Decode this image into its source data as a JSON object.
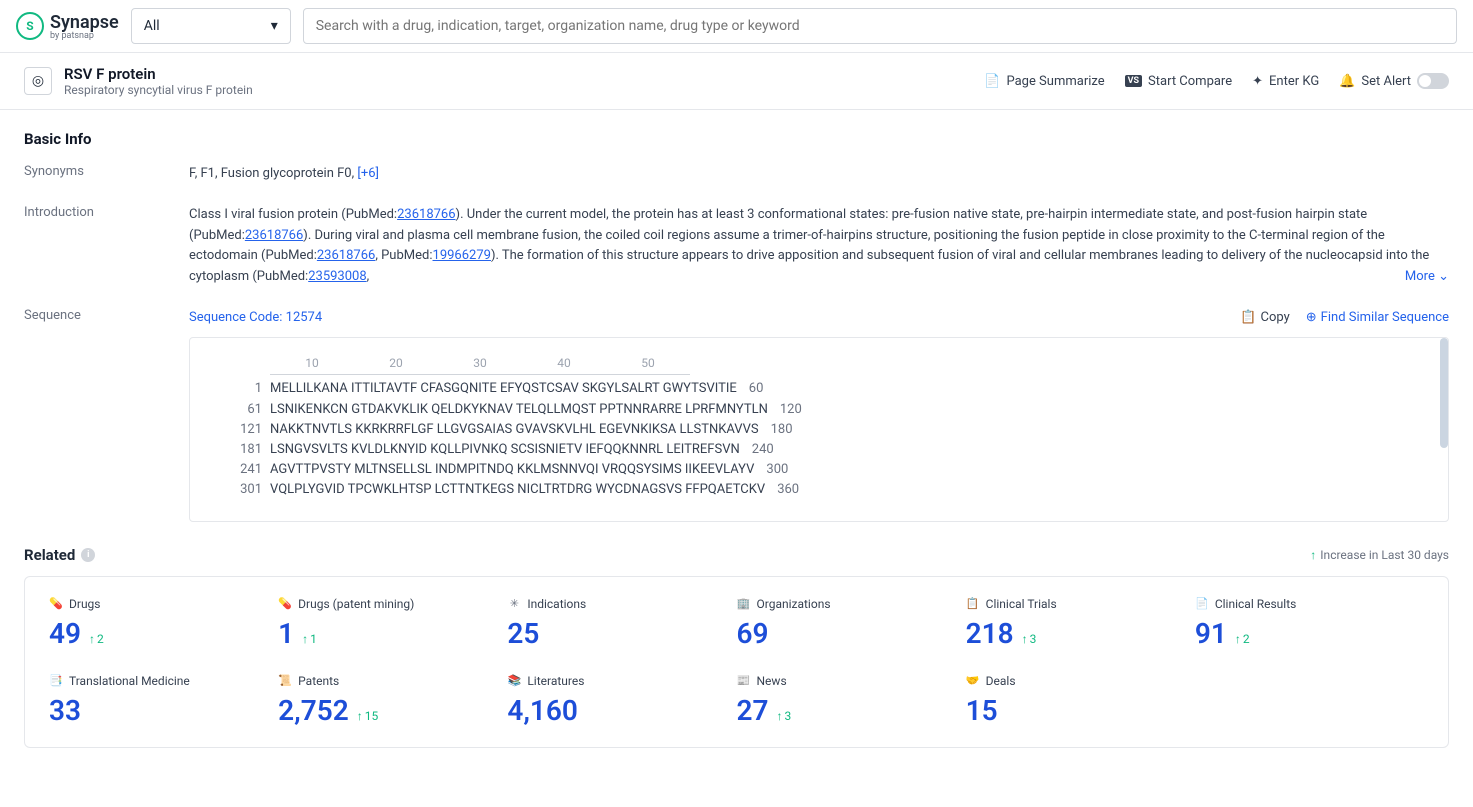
{
  "header": {
    "logo_text": "Synapse",
    "logo_sub": "by patsnap",
    "filter_label": "All",
    "search_placeholder": "Search with a drug, indication, target, organization name, drug type or keyword"
  },
  "subheader": {
    "title": "RSV F protein",
    "subtitle": "Respiratory syncytial virus F protein",
    "actions": {
      "summarize": "Page Summarize",
      "compare": "Start Compare",
      "kg": "Enter KG",
      "alert": "Set Alert"
    }
  },
  "basic_info": {
    "section_title": "Basic Info",
    "synonyms_label": "Synonyms",
    "synonyms_text": "F,  F1,  Fusion glycoprotein F0,  ",
    "synonyms_more": "[+6]",
    "intro_label": "Introduction",
    "intro_p1a": "Class I viral fusion protein (PubMed:",
    "intro_p1_link1": "23618766",
    "intro_p1b": "). Under the current model, the protein has at least 3 conformational states: pre-fusion native state, pre-hairpin intermediate state, and post-fusion hairpin state (PubMed:",
    "intro_p1_link2": "23618766",
    "intro_p1c": "). During viral and plasma cell membrane fusion, the coiled coil regions assume a trimer-of-hairpins structure, positioning the fusion peptide in close proximity to the C-terminal region of the ectodomain (PubMed:",
    "intro_p1_link3": "23618766",
    "intro_p1d": ", PubMed:",
    "intro_p1_link4": "19966279",
    "intro_p1e": "). The formation of this structure appears to drive apposition and subsequent fusion of viral and cellular membranes leading to delivery of the nucleocapsid into the cytoplasm (PubMed:",
    "intro_p1_link5": "23593008",
    "intro_p1f": ",",
    "more_label": "More",
    "seq_label": "Sequence",
    "seq_code": "Sequence Code: 12574",
    "copy_label": "Copy",
    "find_label": "Find Similar Sequence",
    "ruler": {
      "c1": "10",
      "c2": "20",
      "c3": "30",
      "c4": "40",
      "c5": "50"
    },
    "seq_lines": [
      {
        "l": "1",
        "s": "MELLILKANA ITTILTAVTF CFASGQNITE EFYQSTCSAV SKGYLSALRT GWYTSVITIE",
        "r": "60"
      },
      {
        "l": "61",
        "s": "LSNIKENKCN GTDAKVKLIK QELDKYKNAV TELQLLMQST PPTNNRARRE LPRFMNYTLN",
        "r": "120"
      },
      {
        "l": "121",
        "s": "NAKKTNVTLS KKRKRRFLGF LLGVGSAIAS GVAVSKVLHL EGEVNKIKSA LLSTNKAVVS",
        "r": "180"
      },
      {
        "l": "181",
        "s": "LSNGVSVLTS KVLDLKNYID KQLLPIVNKQ SCSISNIETV IEFQQKNNRL LEITREFSVN",
        "r": "240"
      },
      {
        "l": "241",
        "s": "AGVTTPVSTY MLTNSELLSL INDMPITNDQ KKLMSNNVQI VRQQSYSIMS IIKEEVLAYV",
        "r": "300"
      },
      {
        "l": "301",
        "s": "VQLPLYGVID TPCWKLHTSP LCTTNTKEGS NICLTRTDRG WYCDNAGSVS FFPQAETCKV",
        "r": "360"
      }
    ]
  },
  "related": {
    "title": "Related",
    "legend": "Increase in Last 30 days",
    "stats": [
      {
        "label": "Drugs",
        "value": "49",
        "inc": "2",
        "icon": "💊"
      },
      {
        "label": "Drugs (patent mining)",
        "value": "1",
        "inc": "1",
        "icon": "💊"
      },
      {
        "label": "Indications",
        "value": "25",
        "inc": "",
        "icon": "✳"
      },
      {
        "label": "Organizations",
        "value": "69",
        "inc": "",
        "icon": "🏢"
      },
      {
        "label": "Clinical Trials",
        "value": "218",
        "inc": "3",
        "icon": "📋"
      },
      {
        "label": "Clinical Results",
        "value": "91",
        "inc": "2",
        "icon": "📄"
      },
      {
        "label": "Translational Medicine",
        "value": "33",
        "inc": "",
        "icon": "📑"
      },
      {
        "label": "Patents",
        "value": "2,752",
        "inc": "15",
        "icon": "📜"
      },
      {
        "label": "Literatures",
        "value": "4,160",
        "inc": "",
        "icon": "📚"
      },
      {
        "label": "News",
        "value": "27",
        "inc": "3",
        "icon": "📰"
      },
      {
        "label": "Deals",
        "value": "15",
        "inc": "",
        "icon": "🤝"
      }
    ]
  }
}
